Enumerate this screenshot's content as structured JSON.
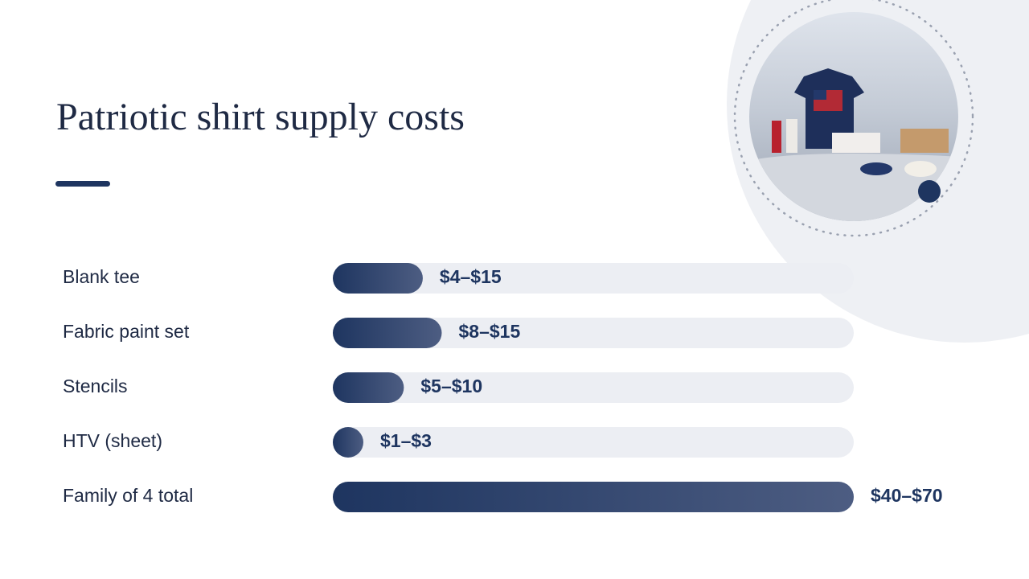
{
  "chart_data": {
    "type": "range-bar",
    "title": "Patriotic shirt supply costs",
    "categories": [
      "Blank tee",
      "Fabric paint set",
      "Stencils",
      "HTV (sheet)",
      "Family of 4 total"
    ],
    "low": [
      4,
      8,
      5,
      1,
      40
    ],
    "high": [
      15,
      15,
      10,
      3,
      70
    ],
    "value_labels": [
      "$4–$15",
      "$8–$15",
      "$5–$10",
      "$1–$3",
      "$40–$70"
    ],
    "color": "#1e3560"
  }
}
